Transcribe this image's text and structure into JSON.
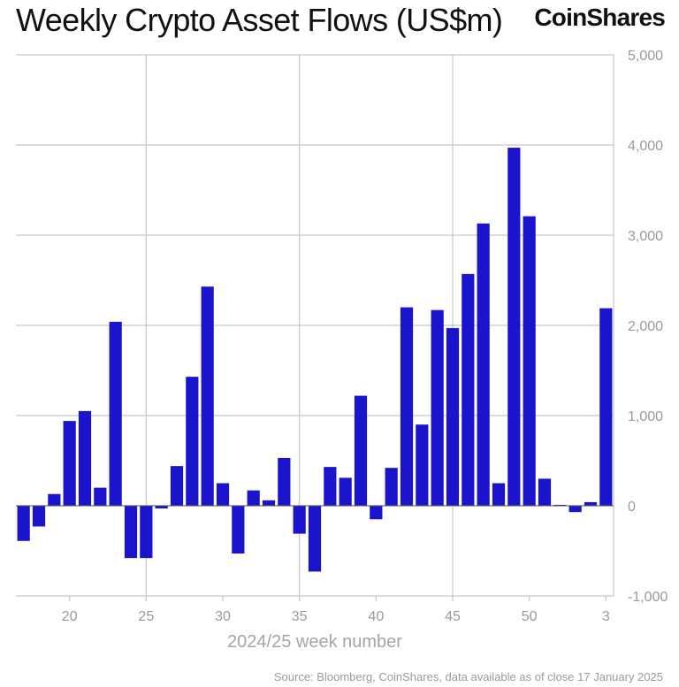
{
  "header": {
    "title": "Weekly Crypto Asset Flows (US$m)",
    "logo_text": "CoinShares"
  },
  "footer": {
    "source": "Source: Bloomberg, CoinShares, data available as of close 17 January 2025"
  },
  "chart_data": {
    "type": "bar",
    "title": "Weekly Crypto Asset Flows (US$m)",
    "xlabel": "2024/25 week number",
    "ylabel": "",
    "ylim": [
      -1000,
      5000
    ],
    "y_ticks": [
      "5,000",
      "4,000",
      "3,000",
      "2,000",
      "1,000",
      "0",
      "-1,000"
    ],
    "y_tick_values": [
      5000,
      4000,
      3000,
      2000,
      1000,
      0,
      -1000
    ],
    "x_ticks": [
      "20",
      "25",
      "30",
      "35",
      "40",
      "45",
      "50",
      "3"
    ],
    "x_tick_categories": [
      "20",
      "25",
      "30",
      "35",
      "40",
      "45",
      "50",
      "3"
    ],
    "vertical_gridlines_at": [
      "25",
      "35",
      "45"
    ],
    "grid": true,
    "y_axis_side": "right",
    "bar_color": "#1a14cc",
    "categories": [
      "17",
      "18",
      "19",
      "20",
      "21",
      "22",
      "23",
      "24",
      "25",
      "26",
      "27",
      "28",
      "29",
      "30",
      "31",
      "32",
      "33",
      "34",
      "35",
      "36",
      "37",
      "38",
      "39",
      "40",
      "41",
      "42",
      "43",
      "44",
      "45",
      "46",
      "47",
      "48",
      "49",
      "50",
      "51",
      "52",
      "1",
      "2",
      "3"
    ],
    "values": [
      -390,
      -230,
      130,
      940,
      1050,
      200,
      2040,
      -580,
      -580,
      -30,
      440,
      1430,
      2430,
      250,
      -530,
      170,
      60,
      530,
      -310,
      -730,
      430,
      310,
      1220,
      -150,
      420,
      2200,
      900,
      2170,
      1970,
      2570,
      3130,
      250,
      3970,
      3210,
      300,
      10,
      -70,
      40,
      2190
    ]
  },
  "colors": {
    "bar": "#1a14cc",
    "grid": "#c8c8c8",
    "axis_text": "#9a9a9a",
    "title": "#111111"
  }
}
